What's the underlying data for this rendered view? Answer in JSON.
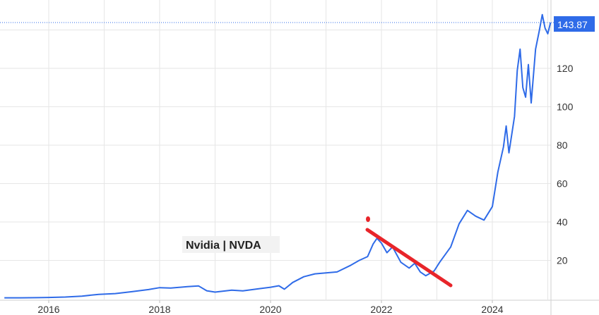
{
  "title": "Nvidia | NVDA",
  "last_price_label": "143.87",
  "colors": {
    "line": "#2f6be8",
    "grid": "#e6e6e6",
    "badge": "#2f6be8",
    "annotation": "#e8252a",
    "dotted_ref": "#2f6be8"
  },
  "chart_data": {
    "type": "line",
    "title": "Nvidia | NVDA",
    "xlabel": "",
    "ylabel": "",
    "x_ticks": [
      "2016",
      "2018",
      "2020",
      "2022",
      "2024"
    ],
    "y_ticks": [
      20,
      40,
      60,
      80,
      100,
      120
    ],
    "ylim": [
      0,
      150
    ],
    "xlim": [
      2015.2,
      2025.1
    ],
    "grid": true,
    "last_value": 143.87,
    "series": [
      {
        "points": [
          [
            2015.2,
            0.5
          ],
          [
            2015.5,
            0.5
          ],
          [
            2015.8,
            0.6
          ],
          [
            2016.0,
            0.7
          ],
          [
            2016.3,
            0.9
          ],
          [
            2016.6,
            1.4
          ],
          [
            2016.9,
            2.3
          ],
          [
            2017.2,
            2.7
          ],
          [
            2017.5,
            3.7
          ],
          [
            2017.8,
            4.8
          ],
          [
            2018.0,
            5.8
          ],
          [
            2018.2,
            5.6
          ],
          [
            2018.5,
            6.3
          ],
          [
            2018.7,
            6.7
          ],
          [
            2018.85,
            4.2
          ],
          [
            2019.0,
            3.5
          ],
          [
            2019.3,
            4.5
          ],
          [
            2019.5,
            4.1
          ],
          [
            2019.8,
            5.3
          ],
          [
            2020.0,
            6.0
          ],
          [
            2020.15,
            6.8
          ],
          [
            2020.25,
            5.0
          ],
          [
            2020.4,
            8.5
          ],
          [
            2020.6,
            11.5
          ],
          [
            2020.8,
            13.0
          ],
          [
            2021.0,
            13.5
          ],
          [
            2021.2,
            14.0
          ],
          [
            2021.45,
            17.5
          ],
          [
            2021.6,
            20.0
          ],
          [
            2021.75,
            22.0
          ],
          [
            2021.85,
            28.5
          ],
          [
            2021.92,
            31.5
          ],
          [
            2022.0,
            29.0
          ],
          [
            2022.1,
            24.0
          ],
          [
            2022.2,
            27.0
          ],
          [
            2022.35,
            19.0
          ],
          [
            2022.5,
            16.0
          ],
          [
            2022.6,
            18.5
          ],
          [
            2022.7,
            14.0
          ],
          [
            2022.8,
            12.0
          ],
          [
            2022.95,
            14.5
          ],
          [
            2023.05,
            19.0
          ],
          [
            2023.25,
            27.0
          ],
          [
            2023.4,
            39.0
          ],
          [
            2023.55,
            46.0
          ],
          [
            2023.7,
            43.0
          ],
          [
            2023.85,
            41.0
          ],
          [
            2024.0,
            48.0
          ],
          [
            2024.1,
            66.0
          ],
          [
            2024.2,
            79.0
          ],
          [
            2024.25,
            90.0
          ],
          [
            2024.3,
            76.0
          ],
          [
            2024.4,
            95.0
          ],
          [
            2024.45,
            119.0
          ],
          [
            2024.5,
            130.0
          ],
          [
            2024.55,
            110.0
          ],
          [
            2024.6,
            105.0
          ],
          [
            2024.65,
            122.0
          ],
          [
            2024.7,
            102.0
          ],
          [
            2024.78,
            130.0
          ],
          [
            2024.85,
            140.0
          ],
          [
            2024.9,
            148.0
          ],
          [
            2024.95,
            141.0
          ],
          [
            2025.0,
            138.0
          ],
          [
            2025.05,
            143.87
          ]
        ]
      }
    ]
  }
}
